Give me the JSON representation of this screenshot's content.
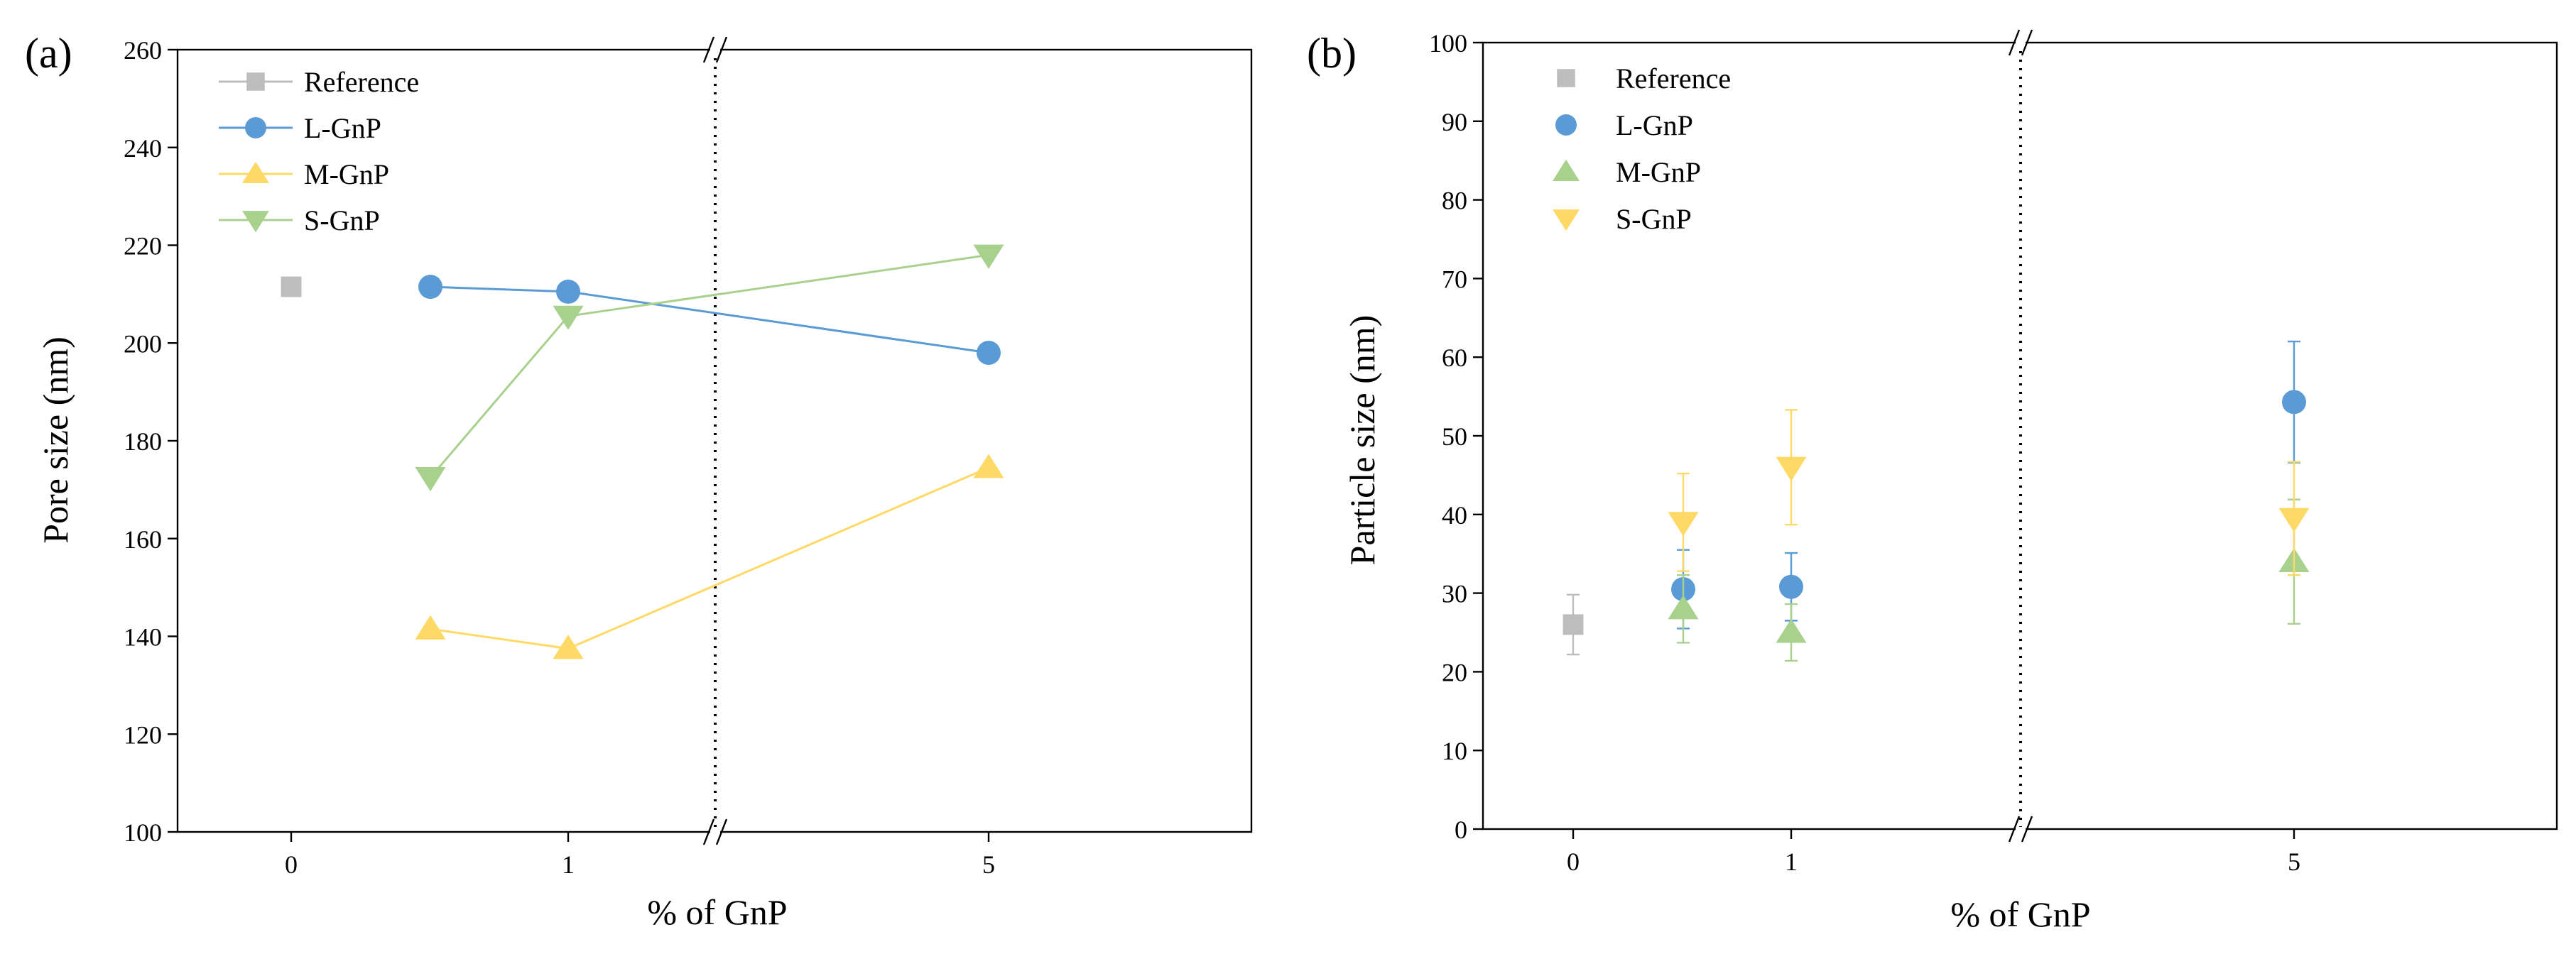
{
  "chart_data": [
    {
      "type": "line",
      "panel_label": "(a)",
      "xlabel": "% of GnP",
      "ylabel": "Pore size (nm)",
      "ylim": [
        100,
        260
      ],
      "y_ticks": [
        100,
        120,
        140,
        160,
        180,
        200,
        220,
        240,
        260
      ],
      "x_tick_labels": [
        "0",
        "1",
        "5"
      ],
      "x_axis_break": "between 1 and 5",
      "legend_position": "top-left",
      "series": [
        {
          "name": "Reference",
          "color": "#bdbdbd",
          "marker": "square",
          "x": [
            0
          ],
          "y": [
            211.5
          ]
        },
        {
          "name": "L-GnP",
          "color": "#5b9bd5",
          "marker": "circle",
          "x": [
            0.5,
            1,
            5
          ],
          "y": [
            211.5,
            210.5,
            198
          ]
        },
        {
          "name": "M-GnP",
          "color": "#ffd966",
          "marker": "triangle-up",
          "x": [
            0.5,
            1,
            5
          ],
          "y": [
            141.5,
            137.5,
            174.5
          ]
        },
        {
          "name": "S-GnP",
          "color": "#a9d18e",
          "marker": "triangle-down",
          "x": [
            0.5,
            1,
            5
          ],
          "y": [
            172.5,
            205.5,
            218
          ]
        }
      ]
    },
    {
      "type": "scatter",
      "panel_label": "(b)",
      "xlabel": "% of GnP",
      "ylabel": "Particle size (nm)",
      "ylim": [
        0,
        100
      ],
      "y_ticks": [
        0,
        10,
        20,
        30,
        40,
        50,
        60,
        70,
        80,
        90,
        100
      ],
      "x_tick_labels": [
        "0",
        "1",
        "5"
      ],
      "x_axis_break": "between 1 and 5",
      "legend_position": "top-left",
      "series": [
        {
          "name": "Reference",
          "color": "#bdbdbd",
          "marker": "square",
          "x": [
            0
          ],
          "y": [
            26
          ],
          "err": [
            3.8
          ]
        },
        {
          "name": "L-GnP",
          "color": "#5b9bd5",
          "marker": "circle",
          "x": [
            0.5,
            1,
            5
          ],
          "y": [
            30.5,
            30.8,
            54.3
          ],
          "err": [
            5.0,
            4.3,
            7.7
          ]
        },
        {
          "name": "M-GnP",
          "color": "#a9d18e",
          "marker": "triangle-up",
          "x": [
            0.5,
            1,
            5
          ],
          "y": [
            28,
            25,
            34
          ],
          "err": [
            4.3,
            3.6,
            7.9
          ]
        },
        {
          "name": "S-GnP",
          "color": "#ffd966",
          "marker": "triangle-down",
          "x": [
            0.5,
            1,
            5
          ],
          "y": [
            39,
            46,
            39.5
          ],
          "err": [
            6.2,
            7.3,
            7.2
          ]
        }
      ]
    }
  ]
}
